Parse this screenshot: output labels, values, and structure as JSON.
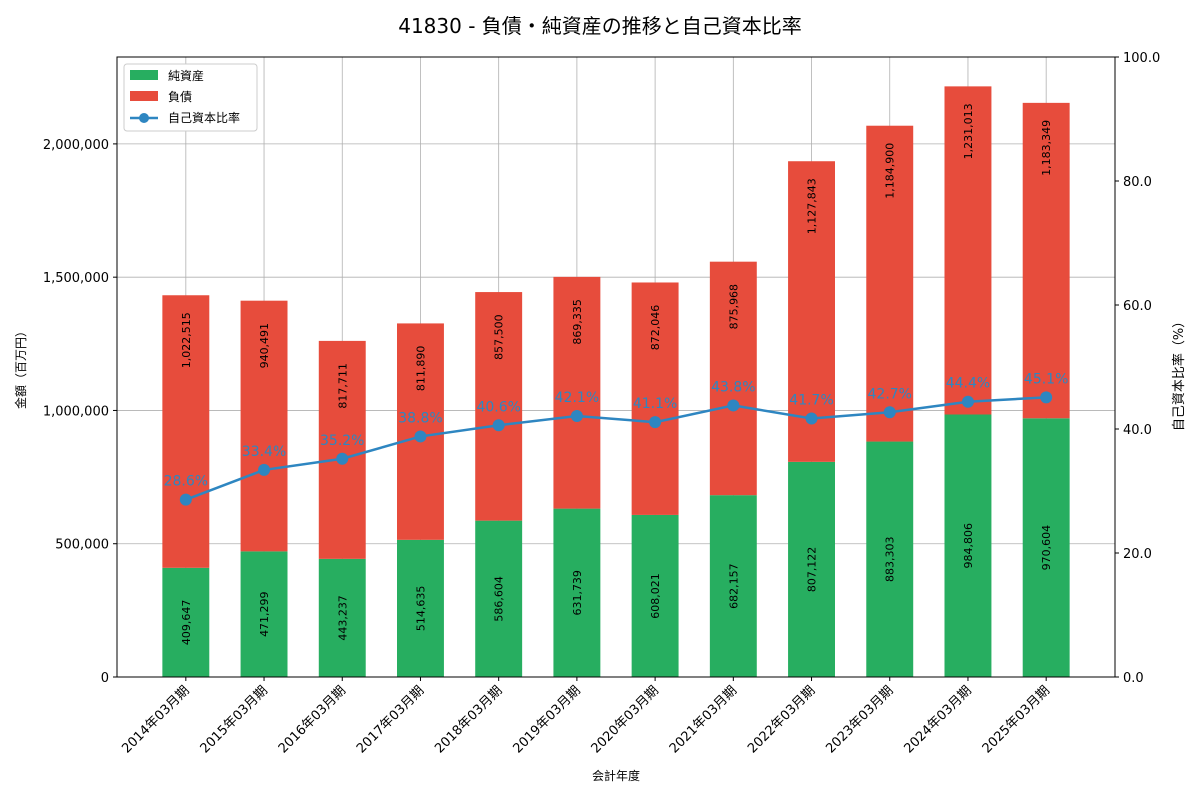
{
  "chart_data": {
    "type": "bar",
    "title": "41830 - 負債・純資産の推移と自己資本比率",
    "xlabel": "会計年度",
    "ylabel": "金額（百万円）",
    "y2label": "自己資本比率（%）",
    "categories": [
      "2014年03月期",
      "2015年03月期",
      "2016年03月期",
      "2017年03月期",
      "2018年03月期",
      "2019年03月期",
      "2020年03月期",
      "2021年03月期",
      "2022年03月期",
      "2023年03月期",
      "2024年03月期",
      "2025年03月期"
    ],
    "series": [
      {
        "name": "純資産",
        "stacked": true,
        "color": "#27ae60",
        "values": [
          409647,
          471299,
          443237,
          514635,
          586604,
          631739,
          608021,
          682157,
          807122,
          883303,
          984806,
          970604
        ],
        "labels": [
          "409,647",
          "471,299",
          "443,237",
          "514,635",
          "586,604",
          "631,739",
          "608,021",
          "682,157",
          "807,122",
          "883,303",
          "984,806",
          "970,604"
        ]
      },
      {
        "name": "負債",
        "stacked": true,
        "color": "#e74c3c",
        "values": [
          1022515,
          940491,
          817711,
          811890,
          857500,
          869335,
          872046,
          875968,
          1127843,
          1184900,
          1231013,
          1183349
        ],
        "labels": [
          "1,022,515",
          "940,491",
          "817,711",
          "811,890",
          "857,500",
          "869,335",
          "872,046",
          "875,968",
          "1,127,843",
          "1,184,900",
          "1,231,013",
          "1,183,349"
        ]
      },
      {
        "name": "自己資本比率",
        "type": "line",
        "axis": "right",
        "color": "#2e86c1",
        "values": [
          28.6,
          33.4,
          35.2,
          38.8,
          40.6,
          42.1,
          41.1,
          43.8,
          41.7,
          42.7,
          44.4,
          45.1
        ],
        "labels": [
          "28.6%",
          "33.4%",
          "35.2%",
          "38.8%",
          "40.6%",
          "42.1%",
          "41.1%",
          "43.8%",
          "41.7%",
          "42.7%",
          "44.4%",
          "45.1%"
        ]
      }
    ],
    "ylim": [
      0,
      2326000
    ],
    "yticks": [
      0,
      500000,
      1000000,
      1500000,
      2000000
    ],
    "ytick_labels": [
      "0",
      "500,000",
      "1,000,000",
      "1,500,000",
      "2,000,000"
    ],
    "y2lim": [
      0,
      100
    ],
    "y2ticks": [
      0,
      20,
      40,
      60,
      80,
      100
    ],
    "y2tick_labels": [
      "0.0",
      "20.0",
      "40.0",
      "60.0",
      "80.0",
      "100.0"
    ],
    "grid": true,
    "legend": "top-left"
  }
}
